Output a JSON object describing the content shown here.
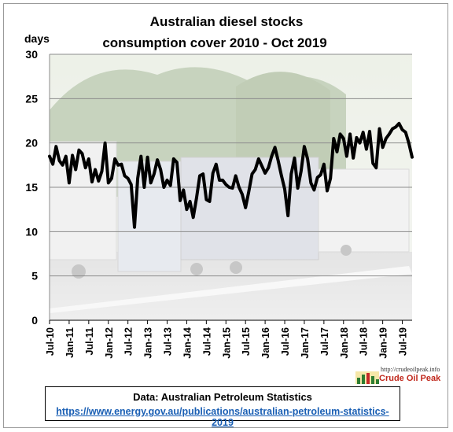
{
  "chart_data": {
    "type": "line",
    "title_lines": [
      "Australian  diesel stocks",
      "consumption  cover 2010 - Oct 2019"
    ],
    "ylabel": "days",
    "ylim": [
      0,
      30
    ],
    "yticks": [
      "0",
      "5",
      "10",
      "15",
      "20",
      "25",
      "30"
    ],
    "grid": "horizontal",
    "line_color": "#000000",
    "x_start": "2010-07",
    "x_end": "2019-10",
    "xticks": [
      "Jul-10",
      "Jan-11",
      "Jul-11",
      "Jan-12",
      "Jul-12",
      "Jan-13",
      "Jul-13",
      "Jan-14",
      "Jul-14",
      "Jan-15",
      "Jul-15",
      "Jan-16",
      "Jul-16",
      "Jan-17",
      "Jul-17",
      "Jan-18",
      "Jul-18",
      "Jan-19",
      "Jul-19"
    ],
    "series": [
      {
        "x": [
          "2010-07",
          "2010-08",
          "2010-09",
          "2010-10",
          "2010-11",
          "2010-12",
          "2011-01",
          "2011-02",
          "2011-03",
          "2011-04",
          "2011-05",
          "2011-06",
          "2011-07",
          "2011-08",
          "2011-09",
          "2011-10",
          "2011-11",
          "2011-12",
          "2012-01",
          "2012-02",
          "2012-03",
          "2012-04",
          "2012-05",
          "2012-06",
          "2012-07",
          "2012-08",
          "2012-09",
          "2012-10",
          "2012-11",
          "2012-12",
          "2013-01",
          "2013-02",
          "2013-03",
          "2013-04",
          "2013-05",
          "2013-06",
          "2013-07",
          "2013-08",
          "2013-09",
          "2013-10",
          "2013-11",
          "2013-12",
          "2014-01",
          "2014-02",
          "2014-03",
          "2014-04",
          "2014-05",
          "2014-06",
          "2014-07",
          "2014-08",
          "2014-09",
          "2014-10",
          "2014-11",
          "2014-12",
          "2015-01",
          "2015-02",
          "2015-03",
          "2015-04",
          "2015-05",
          "2015-06",
          "2015-07",
          "2015-08",
          "2015-09",
          "2015-10",
          "2015-11",
          "2015-12",
          "2016-01",
          "2016-02",
          "2016-03",
          "2016-04",
          "2016-05",
          "2016-06",
          "2016-07",
          "2016-08",
          "2016-09",
          "2016-10",
          "2016-11",
          "2016-12",
          "2017-01",
          "2017-02",
          "2017-03",
          "2017-04",
          "2017-05",
          "2017-06",
          "2017-07",
          "2017-08",
          "2017-09",
          "2017-10",
          "2017-11",
          "2017-12",
          "2018-01",
          "2018-02",
          "2018-03",
          "2018-04",
          "2018-05",
          "2018-06",
          "2018-07",
          "2018-08",
          "2018-09",
          "2018-10",
          "2018-11",
          "2018-12",
          "2019-01",
          "2019-02",
          "2019-03",
          "2019-04",
          "2019-05",
          "2019-06",
          "2019-07",
          "2019-08",
          "2019-09",
          "2019-10"
        ],
        "y": [
          18.5,
          17.6,
          19.6,
          18.0,
          17.5,
          18.5,
          15.5,
          18.6,
          17.0,
          19.2,
          18.8,
          17.2,
          18.2,
          15.6,
          17.0,
          15.7,
          16.8,
          20.0,
          15.5,
          16.0,
          18.2,
          17.5,
          17.6,
          16.3,
          16.0,
          15.3,
          10.5,
          16.0,
          18.5,
          15.0,
          18.4,
          15.5,
          16.5,
          18.1,
          17.0,
          15.0,
          15.8,
          15.2,
          18.2,
          17.8,
          13.5,
          14.7,
          12.5,
          13.4,
          11.6,
          13.8,
          16.3,
          16.5,
          13.6,
          13.4,
          16.6,
          17.6,
          15.8,
          15.8,
          15.3,
          15.0,
          14.9,
          16.3,
          15.0,
          14.2,
          12.7,
          14.5,
          16.5,
          17.0,
          18.2,
          17.4,
          16.6,
          17.2,
          18.5,
          19.5,
          18.0,
          16.3,
          14.8,
          11.8,
          16.5,
          18.3,
          14.9,
          16.8,
          19.6,
          18.2,
          15.5,
          14.7,
          16.1,
          16.4,
          17.6,
          14.6,
          16.0,
          20.5,
          19.0,
          21.0,
          20.5,
          18.5,
          21.0,
          18.3,
          20.6,
          20.0,
          21.2,
          19.3,
          21.3,
          17.7,
          17.2,
          21.6,
          19.5,
          20.5,
          21.0,
          21.6,
          21.8,
          22.2,
          21.5,
          21.2,
          20.0,
          18.4
        ]
      }
    ]
  },
  "source": {
    "text": "Data: Australian Petroleum Statistics",
    "url": "https://www.energy.gov.au/publications/australian-petroleum-statistics-2019"
  },
  "logo": {
    "url_text": "http://crudeoilpeak.info",
    "name": "Crude Oil Peak"
  }
}
